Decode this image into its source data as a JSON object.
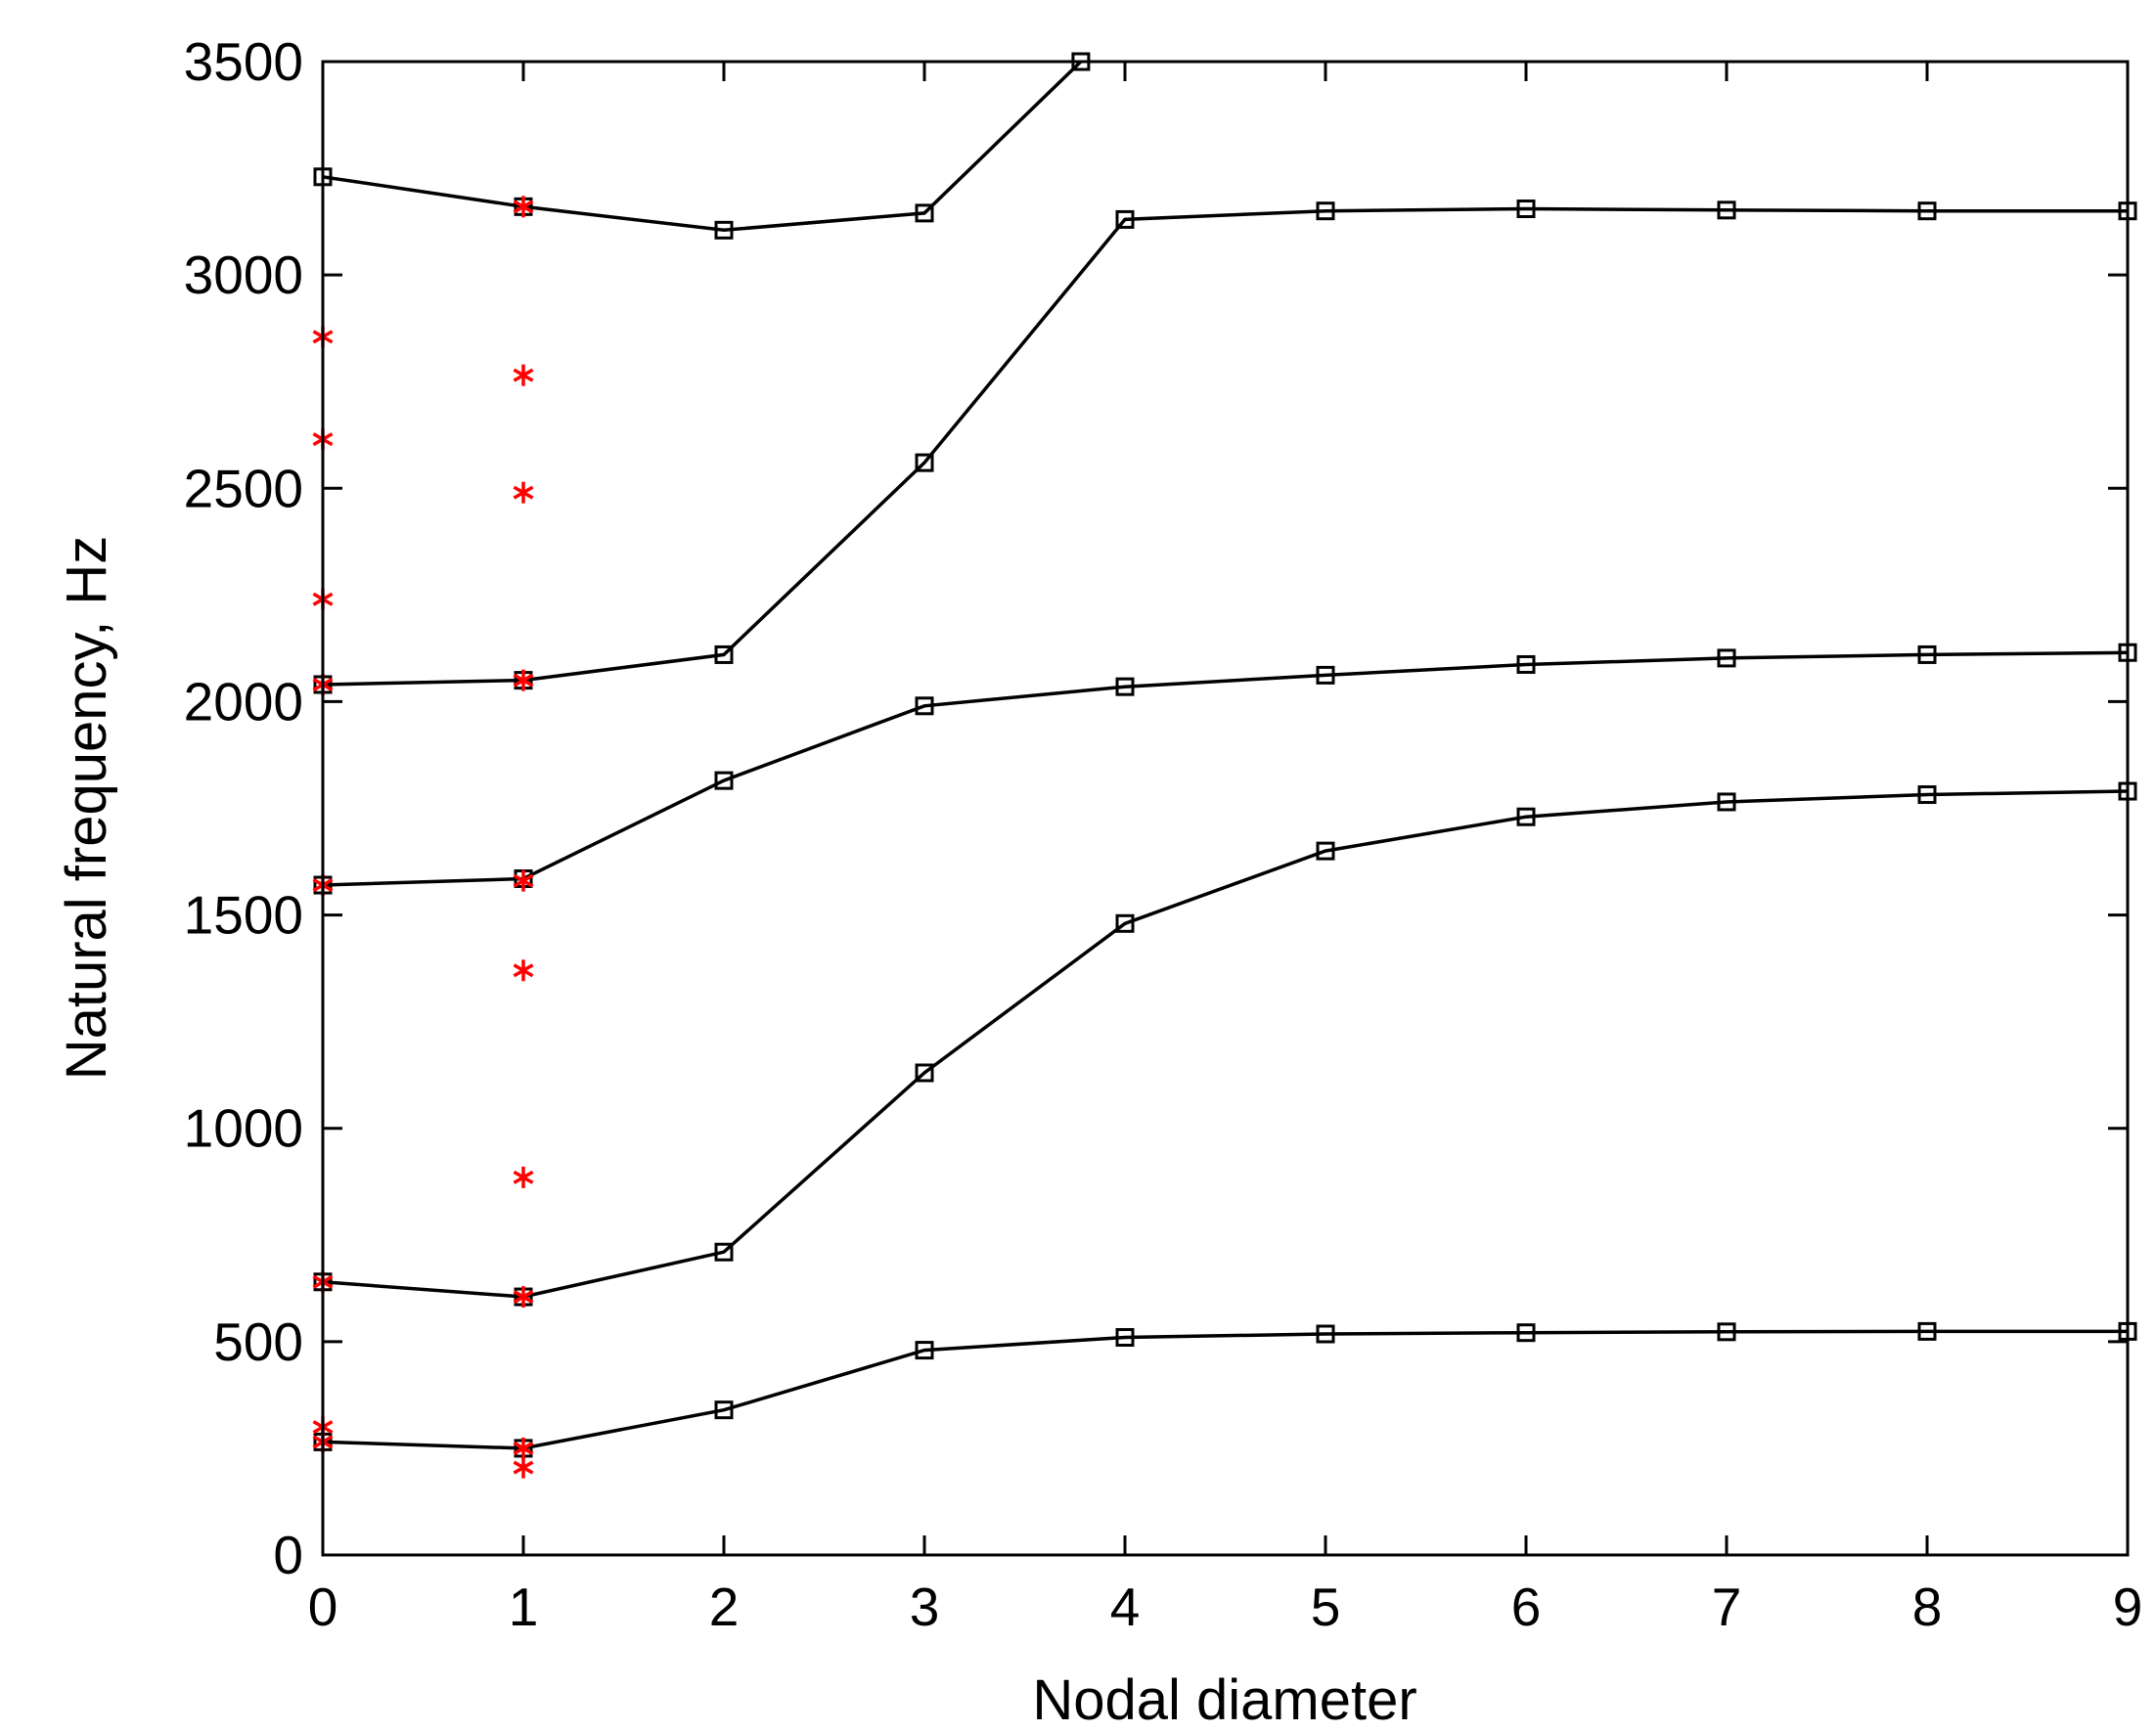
{
  "chart_data": {
    "type": "line",
    "title": "",
    "xlabel": "Nodal diameter",
    "ylabel": "Natural frequency, Hz",
    "xlim": [
      0,
      9
    ],
    "ylim": [
      0,
      3500
    ],
    "xticks": [
      0,
      1,
      2,
      3,
      4,
      5,
      6,
      7,
      8,
      9
    ],
    "yticks": [
      0,
      500,
      1000,
      1500,
      2000,
      2500,
      3000,
      3500
    ],
    "grid": false,
    "legend": "none",
    "series": [
      {
        "marker": "square",
        "color": "#000000",
        "x": [
          0,
          1,
          2,
          3,
          4,
          5,
          6,
          7,
          8,
          9
        ],
        "values": [
          265,
          250,
          340,
          480,
          510,
          518,
          521,
          523,
          524,
          524
        ]
      },
      {
        "marker": "square",
        "color": "#000000",
        "x": [
          0,
          1,
          2,
          3,
          4,
          5,
          6,
          7,
          8,
          9
        ],
        "values": [
          640,
          605,
          710,
          1130,
          1480,
          1650,
          1730,
          1765,
          1782,
          1790
        ]
      },
      {
        "marker": "square",
        "color": "#000000",
        "x": [
          0,
          1,
          2,
          3,
          4,
          5,
          6,
          7,
          8,
          9
        ],
        "values": [
          1570,
          1585,
          1815,
          1990,
          2035,
          2062,
          2087,
          2102,
          2110,
          2115
        ]
      },
      {
        "marker": "square",
        "color": "#000000",
        "x": [
          0,
          1,
          2,
          3,
          4,
          5,
          6,
          7,
          8,
          9
        ],
        "values": [
          2040,
          2050,
          2110,
          2560,
          3130,
          3150,
          3155,
          3152,
          3150,
          3150
        ]
      },
      {
        "marker": "square",
        "color": "#000000",
        "x": [
          0,
          1,
          2,
          3,
          3.78
        ],
        "values": [
          3230,
          3160,
          3105,
          3145,
          3500
        ]
      },
      {
        "marker": "asterisk",
        "color": "#ff0000",
        "line": false,
        "x": [
          0,
          0,
          0,
          0,
          0,
          0,
          0,
          0,
          1,
          1,
          1,
          1,
          1,
          1,
          1,
          1,
          1,
          1
        ],
        "values": [
          300,
          265,
          640,
          1570,
          2040,
          2240,
          2615,
          2855,
          205,
          250,
          605,
          885,
          1370,
          1580,
          2050,
          2490,
          2765,
          3160
        ]
      }
    ]
  }
}
